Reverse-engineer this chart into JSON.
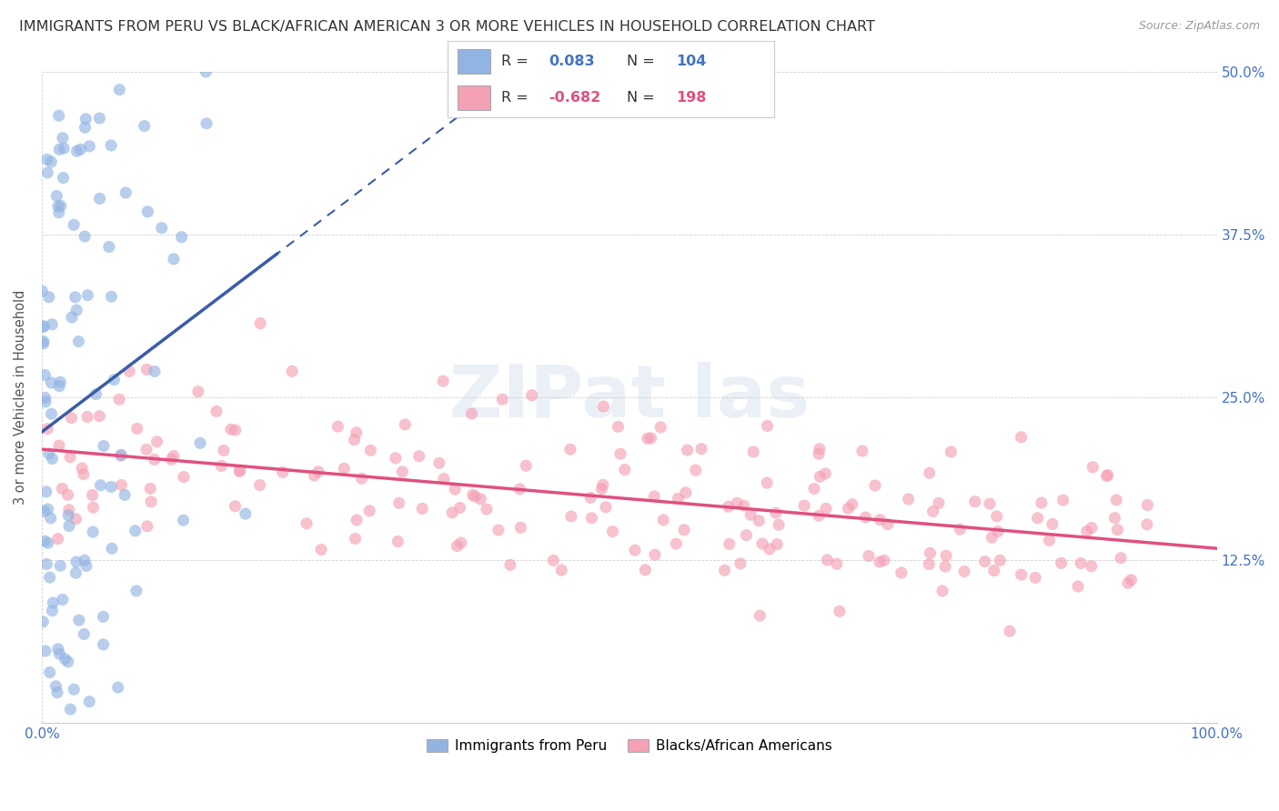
{
  "title": "IMMIGRANTS FROM PERU VS BLACK/AFRICAN AMERICAN 3 OR MORE VEHICLES IN HOUSEHOLD CORRELATION CHART",
  "source": "Source: ZipAtlas.com",
  "ylabel": "3 or more Vehicles in Household",
  "xlim": [
    0,
    100
  ],
  "ylim": [
    0,
    50
  ],
  "xticks": [
    0,
    100
  ],
  "xticklabels": [
    "0.0%",
    "100.0%"
  ],
  "yticks": [
    0,
    12.5,
    25,
    37.5,
    50
  ],
  "yticklabels_left": [
    "",
    "",
    "",
    "",
    ""
  ],
  "yticklabels_right": [
    "",
    "12.5%",
    "25.0%",
    "37.5%",
    "50.0%"
  ],
  "blue_R": 0.083,
  "blue_N": 104,
  "pink_R": -0.682,
  "pink_N": 198,
  "blue_color": "#92b4e3",
  "pink_color": "#f4a0b5",
  "blue_line_color": "#3a5ca8",
  "pink_line_color": "#e05080",
  "legend_label_blue": "Immigrants from Peru",
  "legend_label_pink": "Blacks/African Americans",
  "watermark": "ZIPat las",
  "background_color": "#ffffff",
  "seed": 42,
  "right_tick_color": "#4472c4",
  "bottom_tick_color": "#4472c4"
}
